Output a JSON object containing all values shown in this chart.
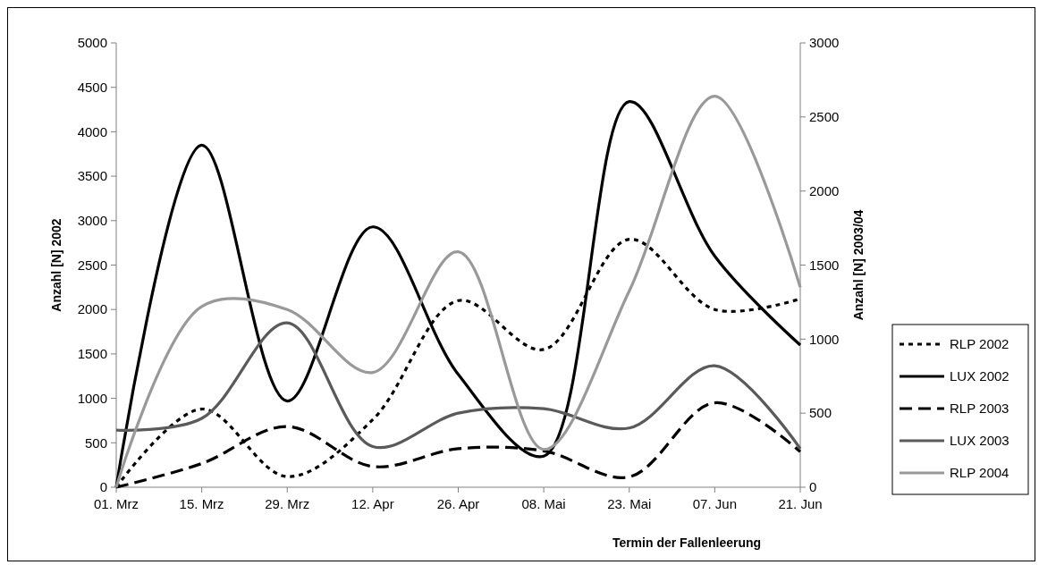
{
  "chart_data": {
    "type": "line",
    "xlabel": "Termin der Fallenleerung",
    "ylabel": "Anzahl [N] 2002",
    "y2label": "Anzahl  [N] 2003/04",
    "categories": [
      "01. Mrz",
      "15. Mrz",
      "29. Mrz",
      "12. Apr",
      "26. Apr",
      "08. Mai",
      "23. Mai",
      "07. Jun",
      "21. Jun"
    ],
    "ylim": [
      0,
      5000
    ],
    "yticks": [
      0,
      500,
      1000,
      1500,
      2000,
      2500,
      3000,
      3500,
      4000,
      4500,
      5000
    ],
    "y2lim": [
      0,
      3000
    ],
    "y2ticks": [
      0,
      500,
      1000,
      1500,
      2000,
      2500,
      3000
    ],
    "grid": false,
    "legend": "right",
    "series": [
      {
        "name": "RLP 2002",
        "color": "#000000",
        "line_style": "dotted",
        "values": [
          0,
          880,
          120,
          760,
          2100,
          1550,
          2790,
          2000,
          2120
        ]
      },
      {
        "name": "LUX 2002",
        "color": "#000000",
        "line_style": "solid",
        "values": [
          0,
          3850,
          970,
          2930,
          1270,
          350,
          4340,
          2600,
          1600
        ]
      },
      {
        "name": "RLP 2003",
        "color": "#000000",
        "line_style": "dashed",
        "axis": "y2",
        "values": [
          0,
          160,
          410,
          140,
          260,
          245,
          70,
          570,
          240
        ]
      },
      {
        "name": "LUX 2003",
        "color": "#5a5a5a",
        "line_style": "solid",
        "axis": "y2",
        "values": [
          385,
          465,
          1110,
          275,
          500,
          530,
          400,
          820,
          260
        ]
      },
      {
        "name": "RLP 2004",
        "color": "#999999",
        "line_style": "solid",
        "axis": "y2",
        "values": [
          0,
          1220,
          1200,
          775,
          1590,
          255,
          1325,
          2640,
          1350
        ]
      }
    ]
  }
}
